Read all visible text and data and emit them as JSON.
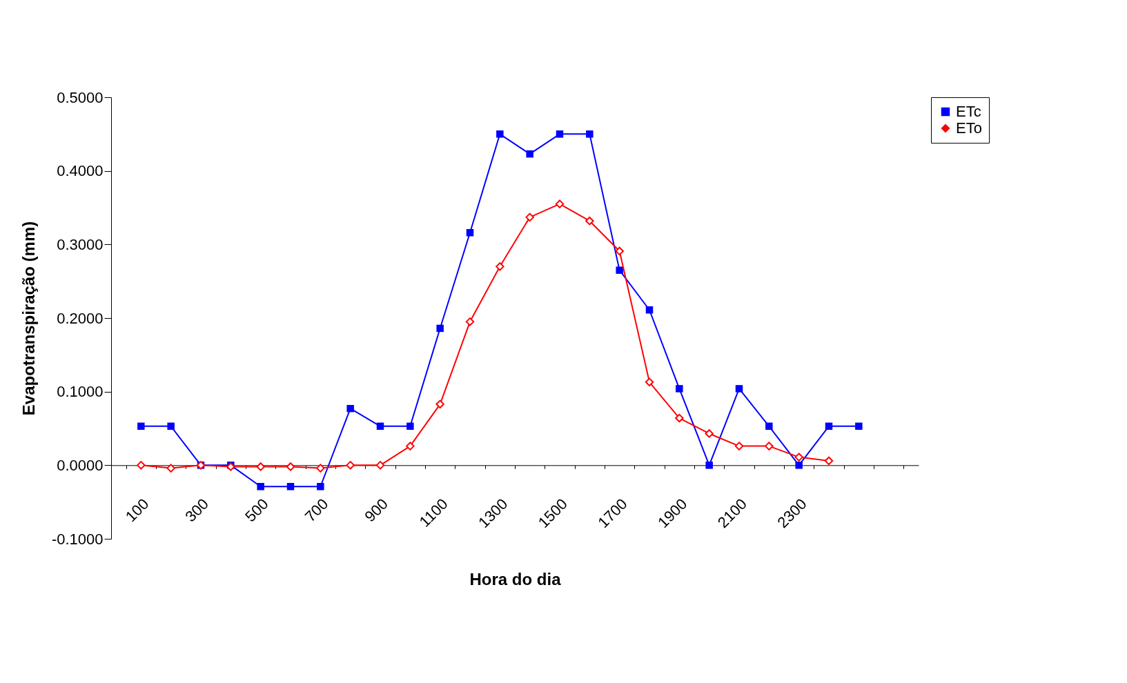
{
  "chart_data": {
    "type": "line",
    "xlabel": "Hora do dia",
    "ylabel": "Evapotranspiração (mm)",
    "categories": [
      "100",
      null,
      "300",
      null,
      "500",
      null,
      "700",
      null,
      "900",
      null,
      "1100",
      null,
      "1300",
      null,
      "1500",
      null,
      "1700",
      null,
      "1900",
      null,
      "2100",
      null,
      "2300",
      null,
      null,
      null
    ],
    "series": [
      {
        "name": "ETc",
        "color": "#0000ff",
        "marker": "square",
        "values": [
          0.053,
          0.053,
          0,
          0,
          -0.029,
          -0.029,
          -0.029,
          0.077,
          0.053,
          0.053,
          0.186,
          0.316,
          0.45,
          0.423,
          0.45,
          0.45,
          0.265,
          0.211,
          0.104,
          0,
          0.104,
          0.053,
          0,
          0.053,
          0.053,
          null
        ]
      },
      {
        "name": "ETo",
        "color": "#ff0000",
        "marker": "diamond",
        "values": [
          0,
          -0.004,
          0,
          -0.002,
          -0.002,
          -0.002,
          -0.004,
          0,
          0,
          0.026,
          0.083,
          0.195,
          0.27,
          0.337,
          0.355,
          0.332,
          0.291,
          0.113,
          0.064,
          0.043,
          0.026,
          0.026,
          0.011,
          0.006,
          null,
          null
        ]
      }
    ],
    "ylim": [
      -0.1,
      0.5
    ],
    "yticks": [
      {
        "value": -0.1,
        "label": "-0.1000"
      },
      {
        "value": 0,
        "label": "0.0000"
      },
      {
        "value": 0.1,
        "label": "0.1000"
      },
      {
        "value": 0.2,
        "label": "0.2000"
      },
      {
        "value": 0.3,
        "label": "0.3000"
      },
      {
        "value": 0.4,
        "label": "0.4000"
      },
      {
        "value": 0.5,
        "label": "0.5000"
      }
    ],
    "grid": false,
    "legend": "right",
    "line_style": "solid"
  }
}
